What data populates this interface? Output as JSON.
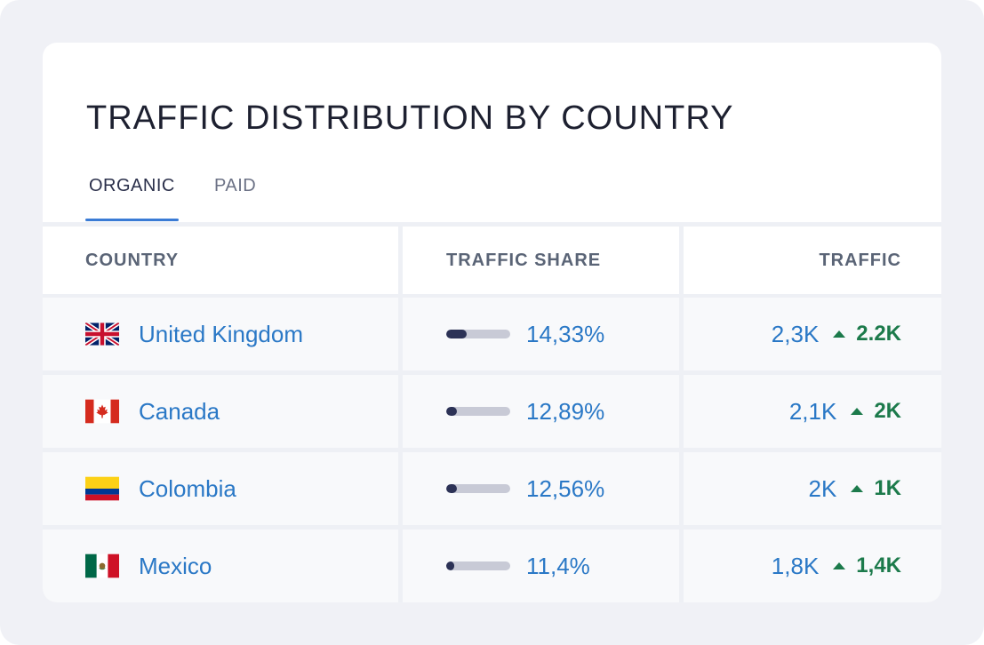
{
  "title": "TRAFFIC DISTRIBUTION BY COUNTRY",
  "tabs": [
    {
      "label": "ORGANIC",
      "active": true
    },
    {
      "label": "PAID",
      "active": false
    }
  ],
  "columns": [
    "COUNTRY",
    "TRAFFIC SHARE",
    "TRAFFIC"
  ],
  "rows": [
    {
      "country": "United Kingdom",
      "flag": "uk-flag-icon",
      "share": "14,33%",
      "share_fraction": 0.32,
      "traffic": "2,3K",
      "delta": "2.2K"
    },
    {
      "country": "Canada",
      "flag": "canada-flag-icon",
      "share": "12,89%",
      "share_fraction": 0.17,
      "traffic": "2,1K",
      "delta": "2K"
    },
    {
      "country": "Colombia",
      "flag": "colombia-flag-icon",
      "share": "12,56%",
      "share_fraction": 0.16,
      "traffic": "2K",
      "delta": "1K"
    },
    {
      "country": "Mexico",
      "flag": "mexico-flag-icon",
      "share": "11,4%",
      "share_fraction": 0.12,
      "traffic": "1,8K",
      "delta": "1,4K"
    }
  ],
  "colors": {
    "link": "#2a78c6",
    "positive": "#1c7a4b",
    "bar_fill": "#2c3256",
    "bar_track": "#c8cad6",
    "tab_underline": "#3a7bd5"
  }
}
